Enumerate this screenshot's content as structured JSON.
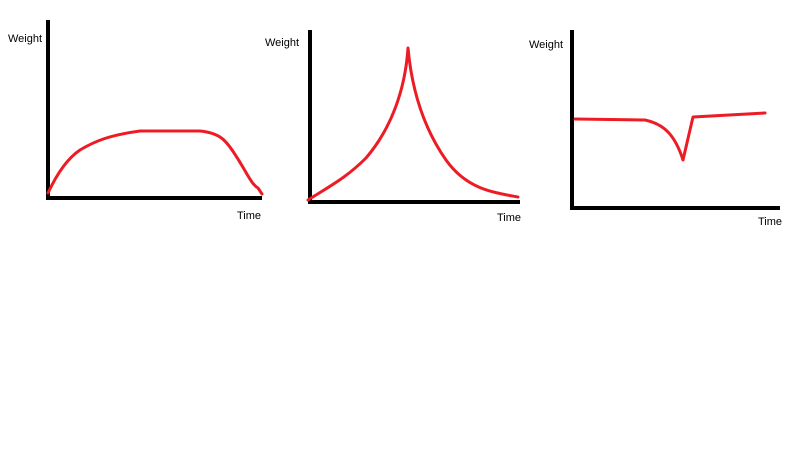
{
  "panels": [
    {
      "y_label": "Weight",
      "x_label": "Time"
    },
    {
      "y_label": "Weight",
      "x_label": "Time"
    },
    {
      "y_label": "Weight",
      "x_label": "Time"
    }
  ]
}
